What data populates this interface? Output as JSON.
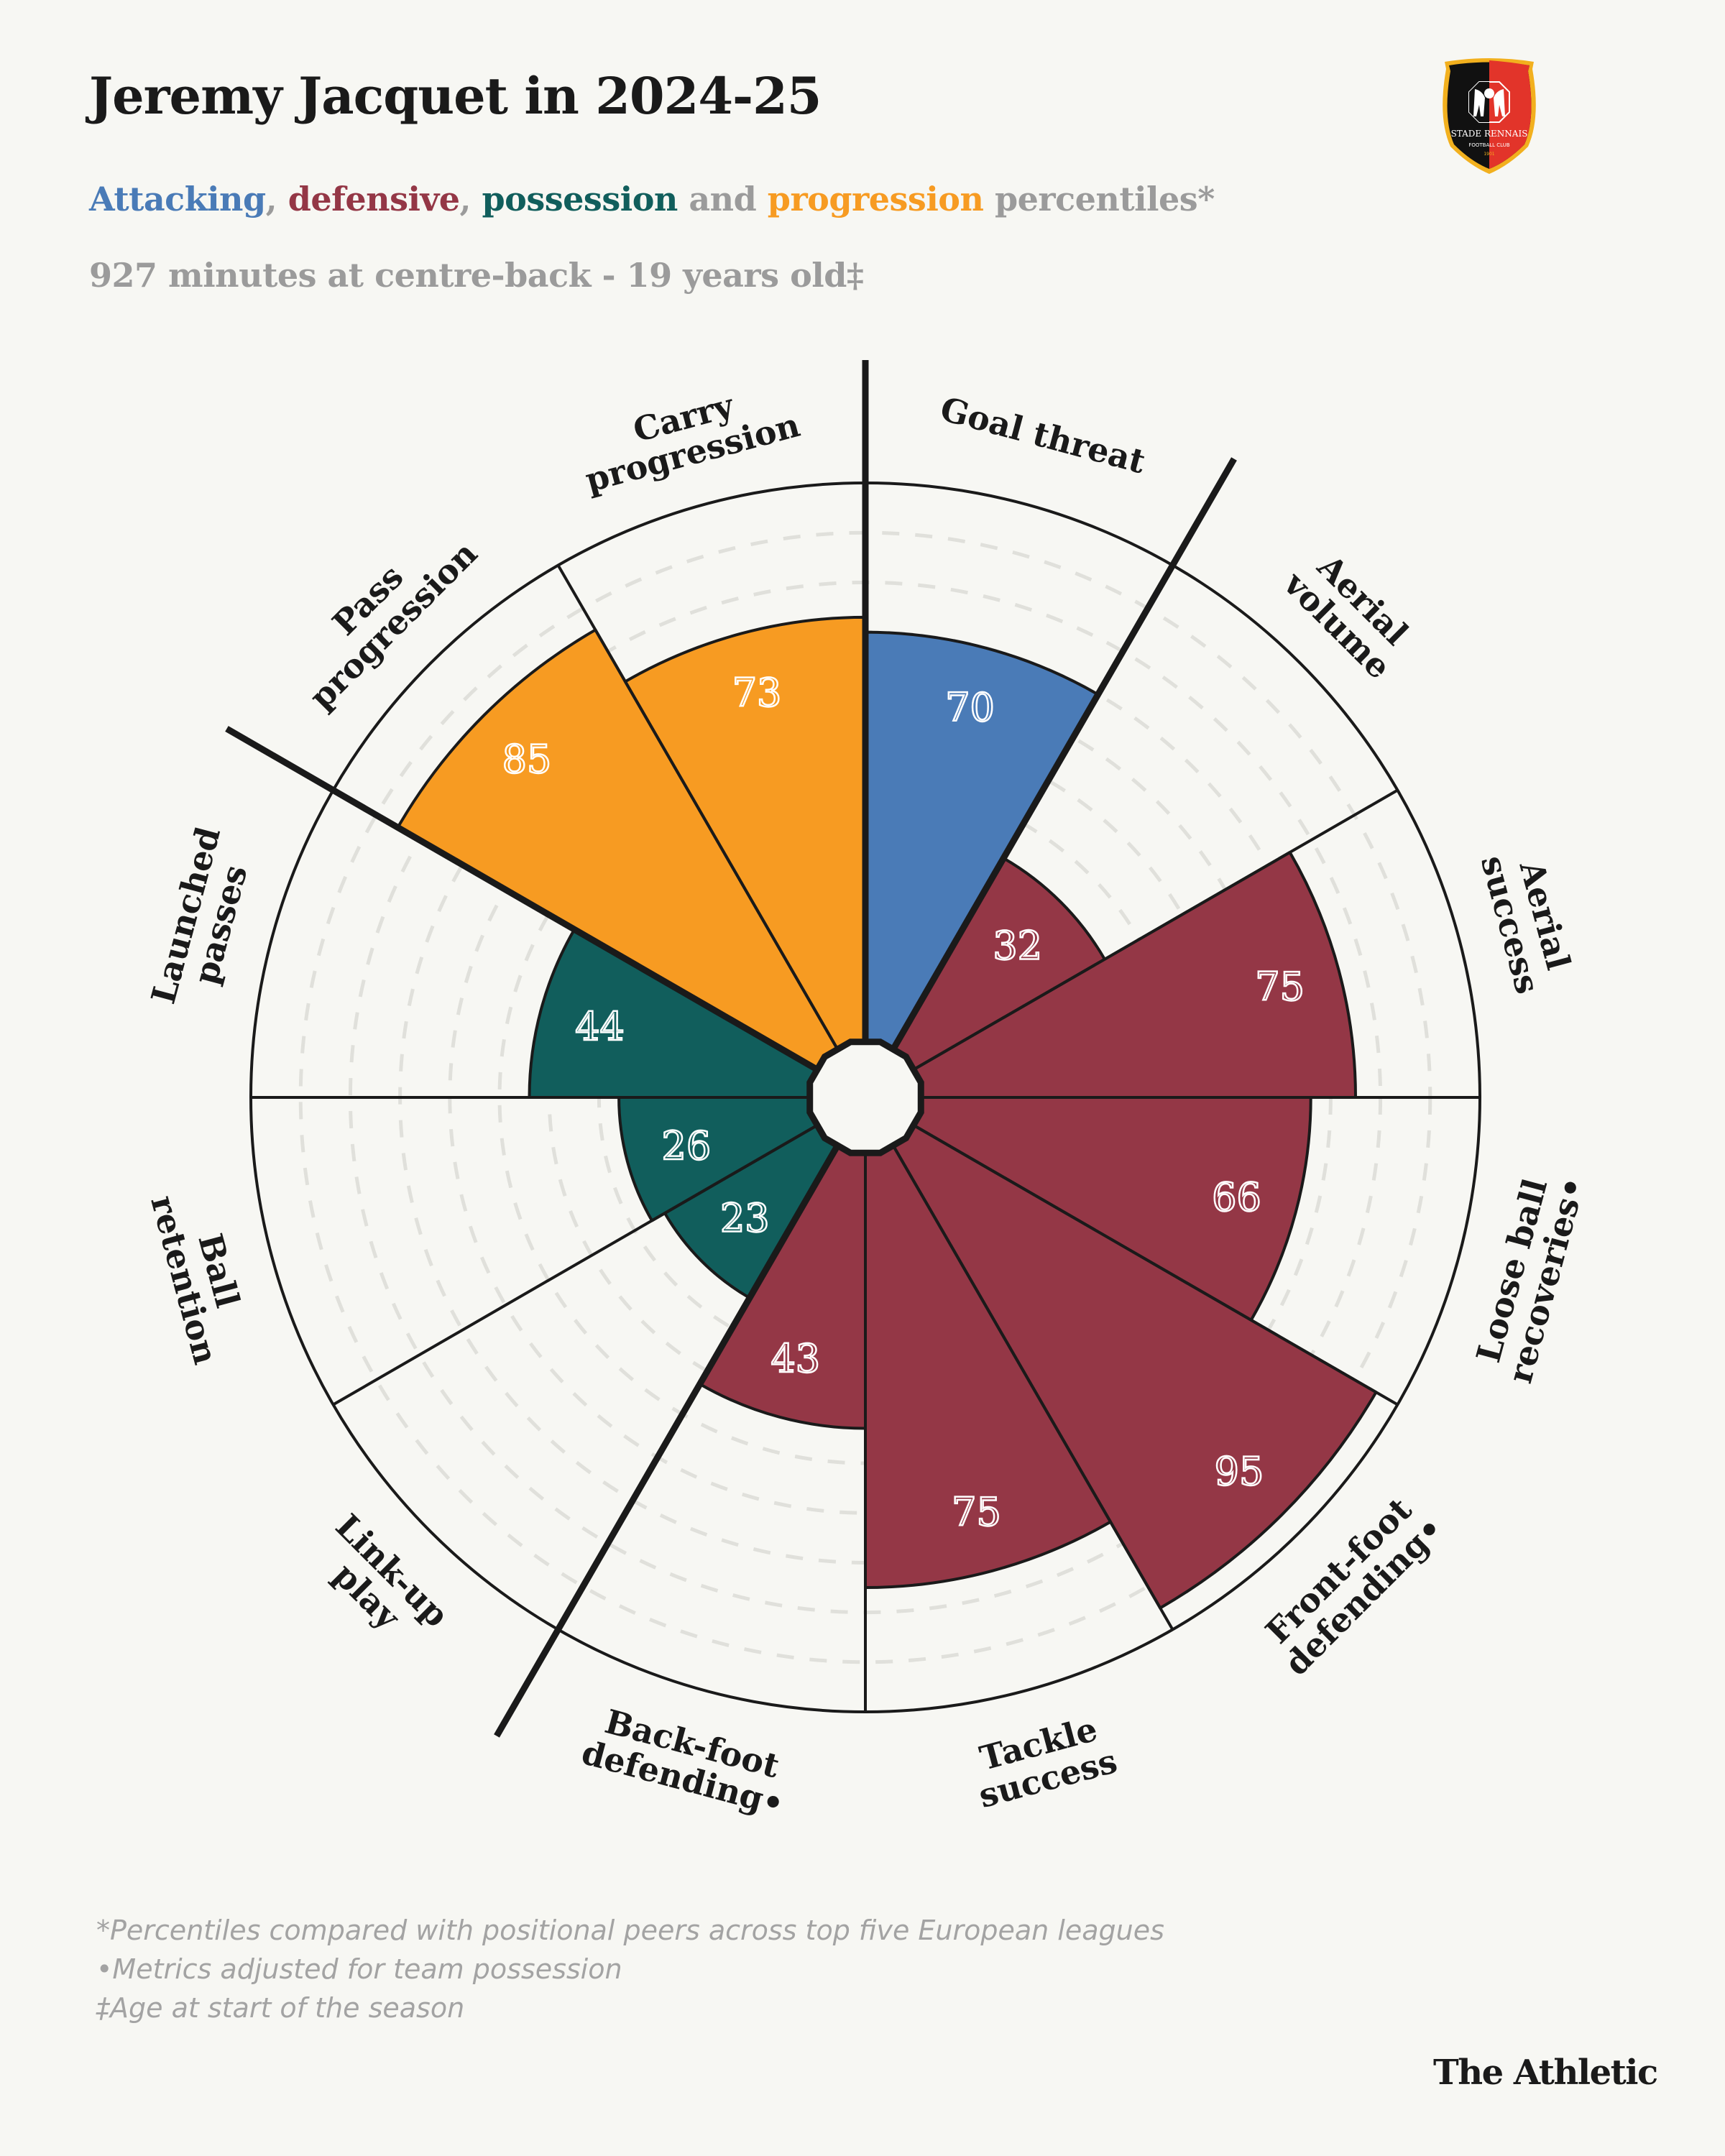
{
  "header": {
    "title": "Jeremy Jacquet in 2024-25",
    "subtitle": {
      "attacking": "Attacking",
      "sep1": ", ",
      "defensive": "defensive",
      "sep2": ", ",
      "possession": "possession",
      "sep3": " and ",
      "progression": "progression",
      "rest": " percentiles*"
    },
    "minutes_line": "927 minutes at centre-back - 19 years old‡"
  },
  "logo": {
    "club": "STADE RENNAIS",
    "line2": "FOOTBALL CLUB",
    "year": "1901"
  },
  "colors": {
    "attacking": "#4a7bb7",
    "defensive": "#943746",
    "possession": "#115e5c",
    "progression": "#f79b22",
    "background": "#f7f7f3",
    "grid": "#e0e0db",
    "ink": "#1a1a1a"
  },
  "chart_data": {
    "type": "polar-bar",
    "rlim": [
      0,
      100
    ],
    "grid": "dashed rings every 10",
    "categories": [
      {
        "label": [
          "Goal threat"
        ],
        "value": 70,
        "group": "attacking"
      },
      {
        "label": [
          "Aerial",
          "volume"
        ],
        "value": 32,
        "group": "defensive"
      },
      {
        "label": [
          "Aerial",
          "success"
        ],
        "value": 75,
        "group": "defensive"
      },
      {
        "label": [
          "Loose ball",
          "recoveries•"
        ],
        "value": 66,
        "group": "defensive"
      },
      {
        "label": [
          "Front-foot",
          "defending•"
        ],
        "value": 95,
        "group": "defensive"
      },
      {
        "label": [
          "Tackle",
          "success"
        ],
        "value": 75,
        "group": "defensive"
      },
      {
        "label": [
          "Back-foot",
          "defending•"
        ],
        "value": 43,
        "group": "defensive"
      },
      {
        "label": [
          "Link-up",
          "play"
        ],
        "value": 23,
        "group": "possession"
      },
      {
        "label": [
          "Ball",
          "retention"
        ],
        "value": 26,
        "group": "possession"
      },
      {
        "label": [
          "Launched",
          "passes"
        ],
        "value": 44,
        "group": "possession"
      },
      {
        "label": [
          "Pass",
          "progression"
        ],
        "value": 85,
        "group": "progression"
      },
      {
        "label": [
          "Carry",
          "progression"
        ],
        "value": 73,
        "group": "progression"
      }
    ]
  },
  "footnotes": [
    "*Percentiles compared with positional peers across top five European leagues",
    "•Metrics adjusted for team possession",
    "‡Age at start of the season"
  ],
  "brand": "The Athletic"
}
